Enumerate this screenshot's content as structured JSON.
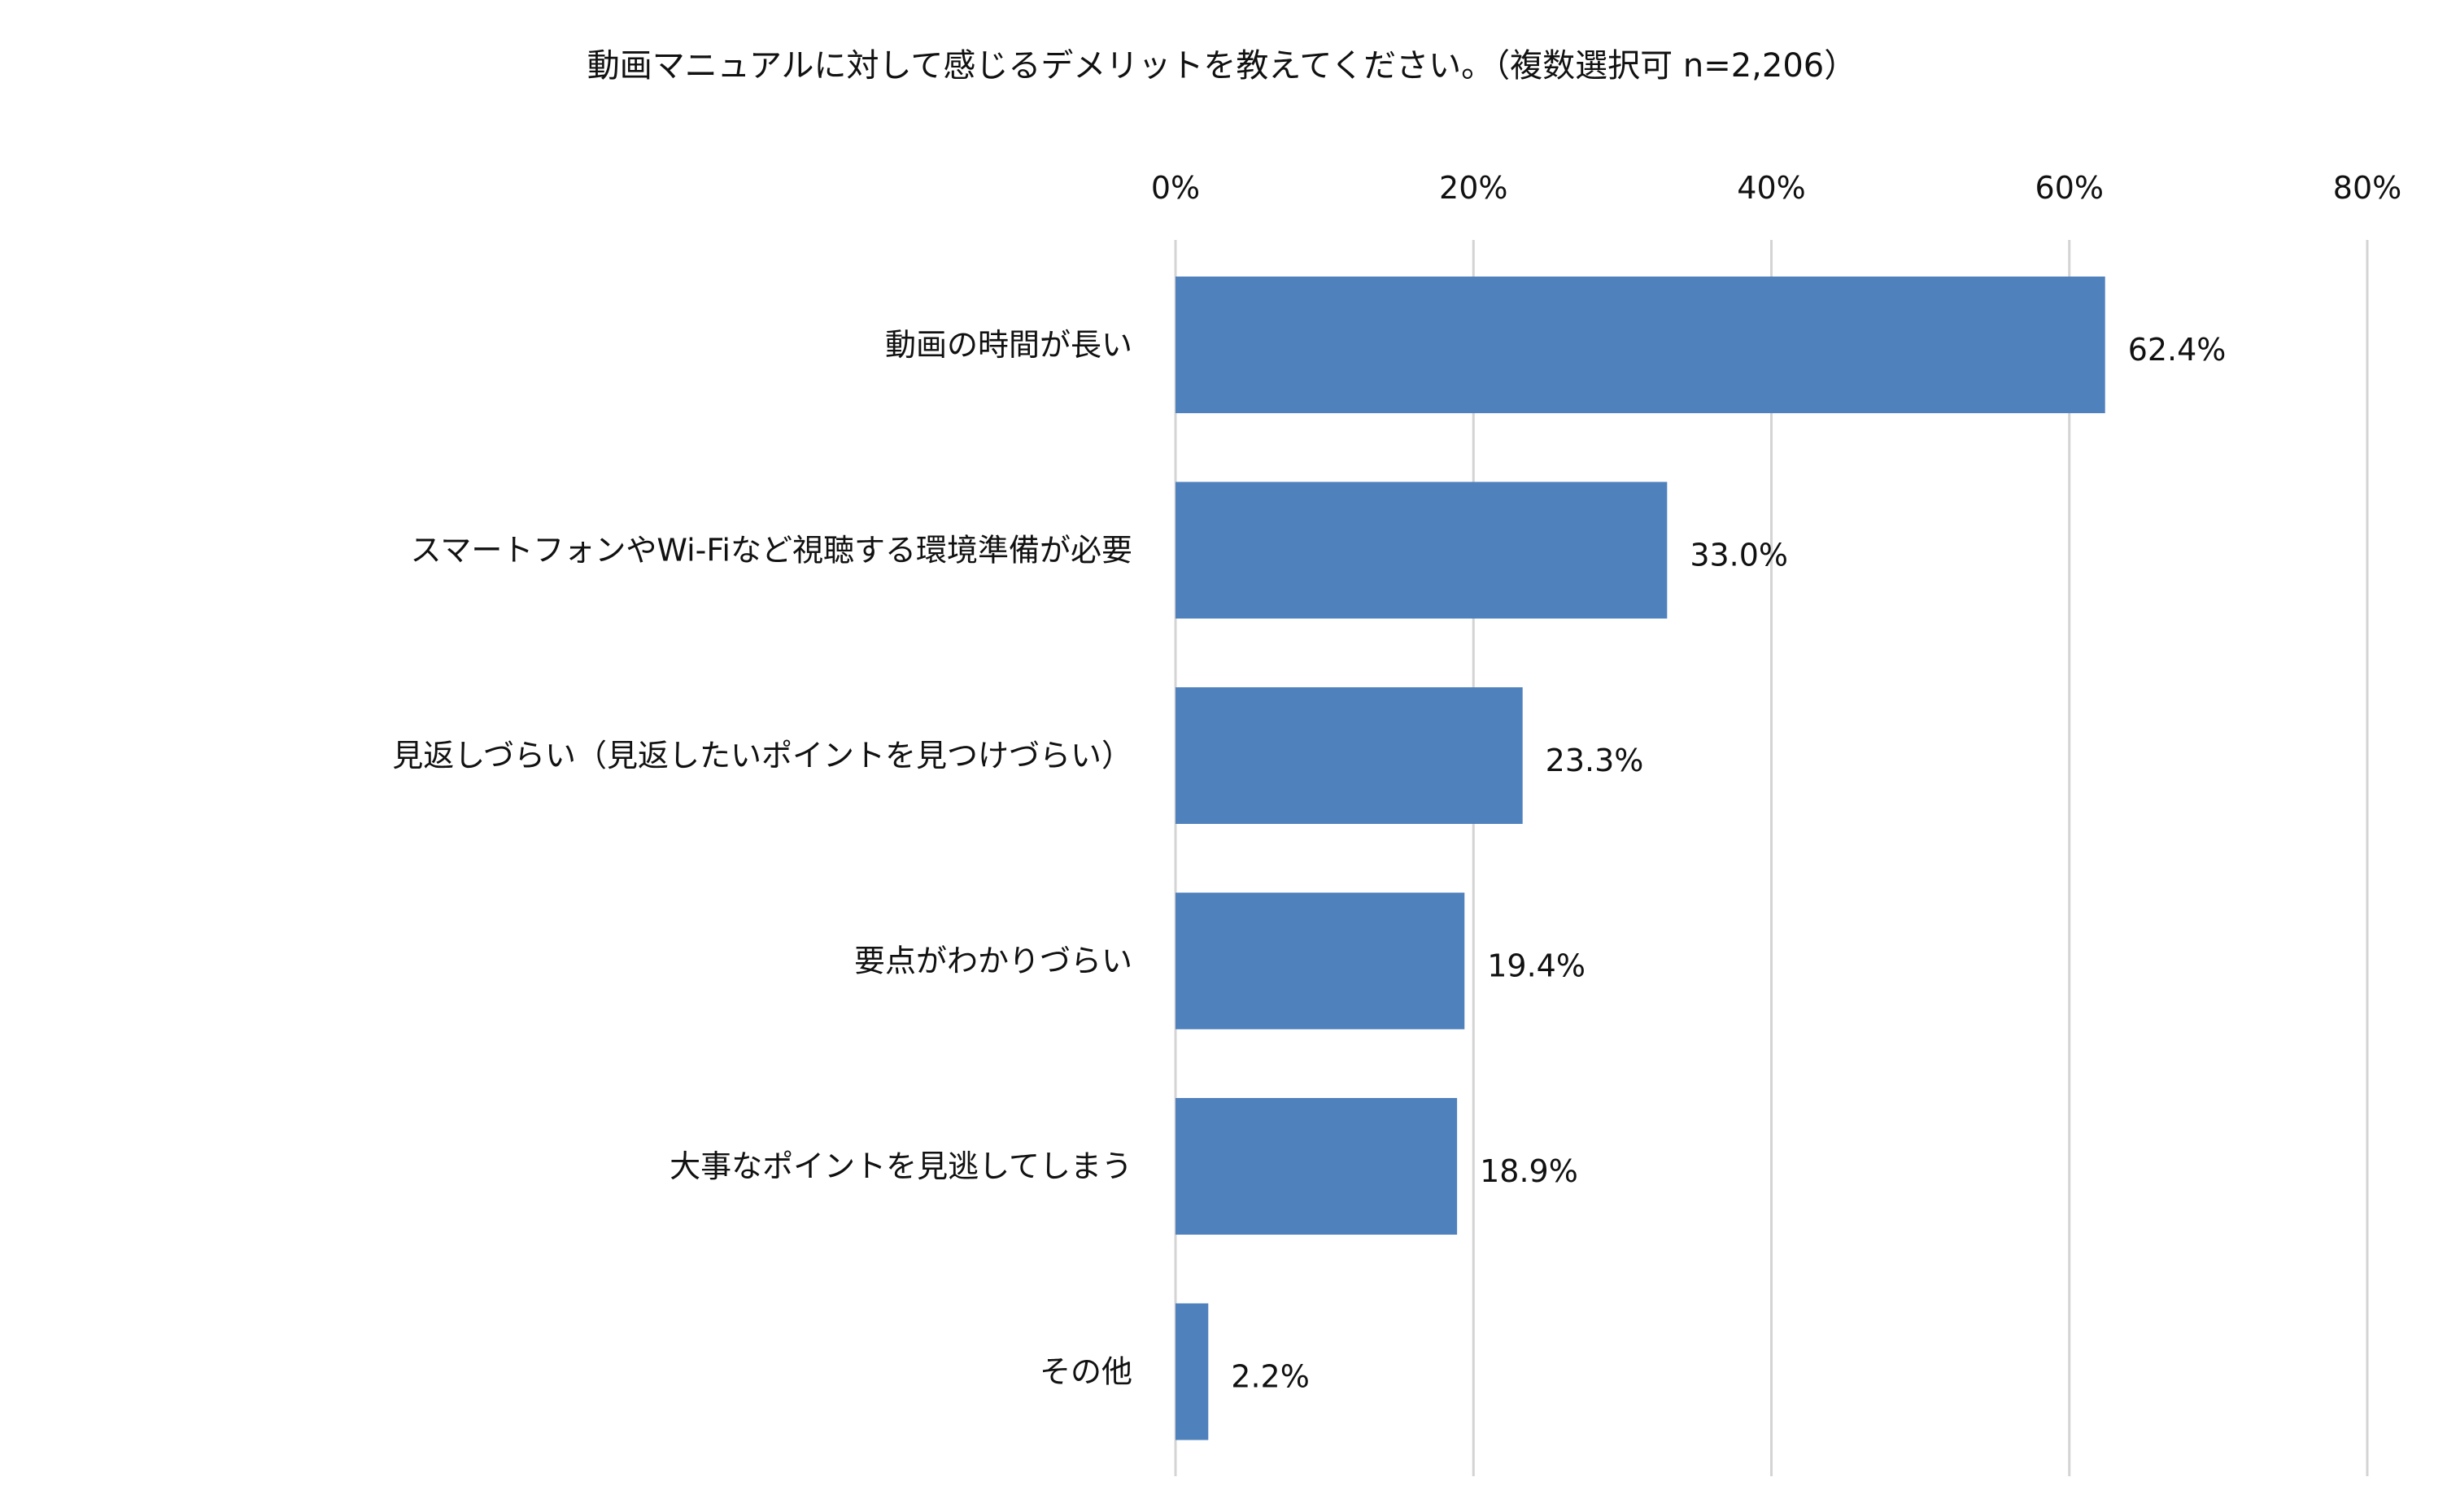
{
  "chart_data": {
    "type": "bar",
    "orientation": "horizontal",
    "title": "動画マニュアルに対して感じるデメリットを教えてください。（複数選択可 n=2,206）",
    "categories": [
      "動画の時間が長い",
      "スマートフォンやWi-Fiなど視聴する環境準備が必要",
      "見返しづらい（見返したいポイントを見つけづらい）",
      "要点がわかりづらい",
      "大事なポイントを見逃してしまう",
      "その他"
    ],
    "values": [
      62.4,
      33.0,
      23.3,
      19.4,
      18.9,
      2.2
    ],
    "value_labels": [
      "62.4%",
      "33.0%",
      "23.3%",
      "19.4%",
      "18.9%",
      "2.2%"
    ],
    "xlim": [
      0,
      80
    ],
    "xticks": [
      0,
      20,
      40,
      60,
      80
    ],
    "xtick_labels": [
      "0%",
      "20%",
      "40%",
      "60%",
      "80%"
    ],
    "axis_position": "top",
    "grid": true,
    "bar_color": "#4f81bd"
  }
}
